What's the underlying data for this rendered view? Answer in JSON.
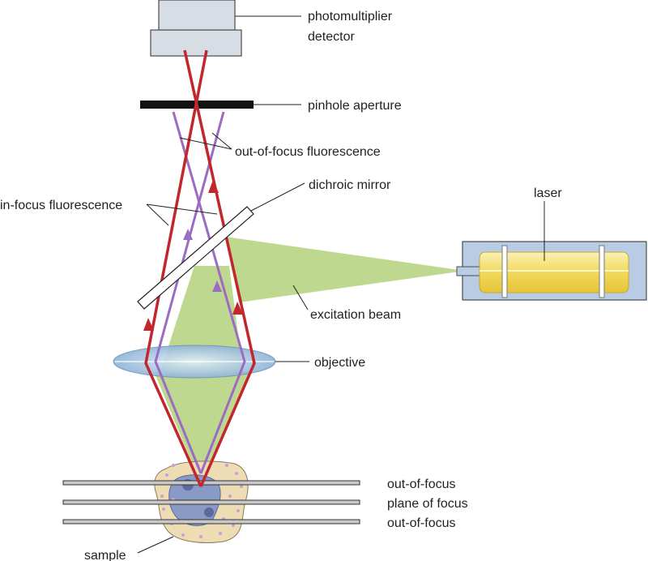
{
  "labels": {
    "detector_line1": "photomultiplier",
    "detector_line2": "detector",
    "pinhole": "pinhole aperture",
    "out_of_focus_fluorescence": "out-of-focus fluorescence",
    "dichroic_mirror": "dichroic mirror",
    "in_focus_fluorescence": "in-focus fluorescence",
    "laser": "laser",
    "excitation_beam": "excitation beam",
    "objective": "objective",
    "plane_top": "out-of-focus",
    "plane_middle": "plane of focus",
    "plane_bottom": "out-of-focus",
    "sample": "sample"
  },
  "colors": {
    "in_focus_ray": "#c1272d",
    "out_of_focus_ray": "#9966bb",
    "excitation_beam": "#b7d47a",
    "lens": "#a9c8e4",
    "laser_housing": "#b8cde4",
    "laser_tube": "#f7e27a",
    "detector": "#d4dbe2",
    "pinhole": "#111111",
    "sample": "#eddcb4",
    "nucleus": "#8a9ac6"
  }
}
